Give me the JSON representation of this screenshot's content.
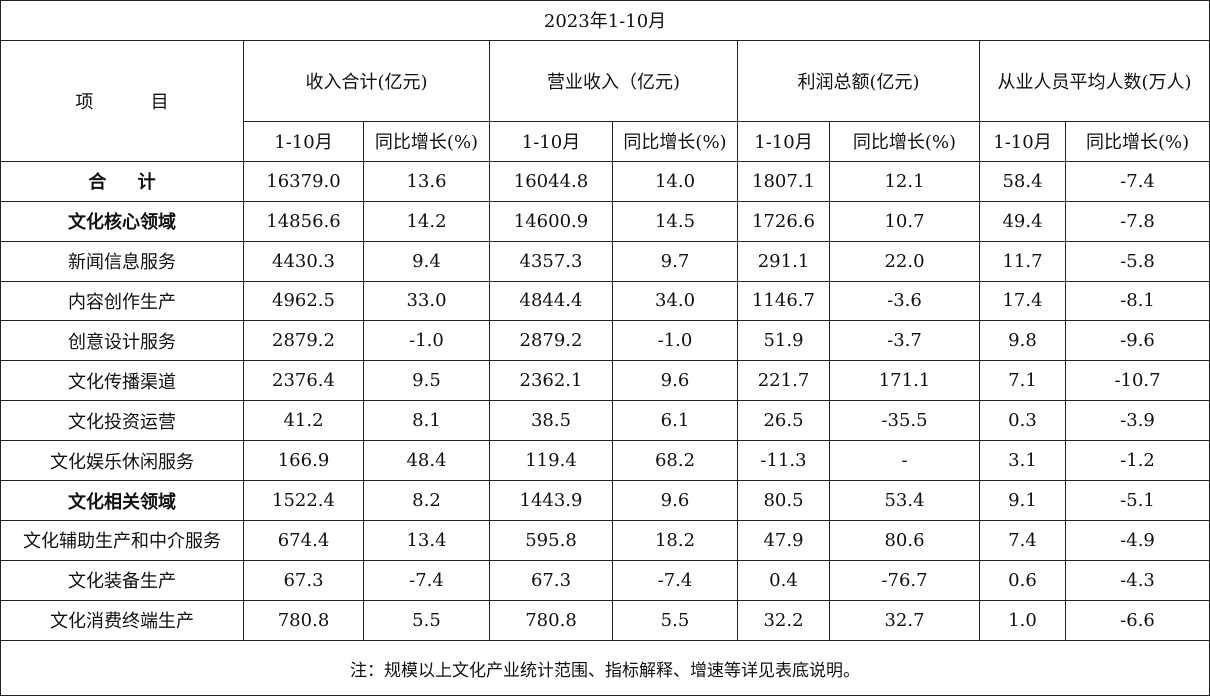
{
  "title": "2023年1-10月",
  "header": {
    "item_label": "项          目",
    "groups": [
      "收入合计(亿元)",
      "营业收入（亿元)",
      "利润总额(亿元)",
      "从业人员平均人数(万人)"
    ],
    "sub": [
      "1-10月",
      "同比增长(%)",
      "1-10月",
      "同比增长(%)",
      "1-10月",
      "同比增长(%)",
      "1-10月",
      "同比增长(%)"
    ]
  },
  "rows": [
    {
      "name": "合     计",
      "bold": true,
      "values": [
        "16379.0",
        "13.6",
        "16044.8",
        "14.0",
        "1807.1",
        "12.1",
        "58.4",
        "-7.4"
      ]
    },
    {
      "name": "文化核心领域",
      "bold": true,
      "values": [
        "14856.6",
        "14.2",
        "14600.9",
        "14.5",
        "1726.6",
        "10.7",
        "49.4",
        "-7.8"
      ]
    },
    {
      "name": "新闻信息服务",
      "bold": false,
      "values": [
        "4430.3",
        "9.4",
        "4357.3",
        "9.7",
        "291.1",
        "22.0",
        "11.7",
        "-5.8"
      ]
    },
    {
      "name": "内容创作生产",
      "bold": false,
      "values": [
        "4962.5",
        "33.0",
        "4844.4",
        "34.0",
        "1146.7",
        "-3.6",
        "17.4",
        "-8.1"
      ]
    },
    {
      "name": "创意设计服务",
      "bold": false,
      "values": [
        "2879.2",
        "-1.0",
        "2879.2",
        "-1.0",
        "51.9",
        "-3.7",
        "9.8",
        "-9.6"
      ]
    },
    {
      "name": "文化传播渠道",
      "bold": false,
      "values": [
        "2376.4",
        "9.5",
        "2362.1",
        "9.6",
        "221.7",
        "171.1",
        "7.1",
        "-10.7"
      ]
    },
    {
      "name": "文化投资运营",
      "bold": false,
      "values": [
        "41.2",
        "8.1",
        "38.5",
        "6.1",
        "26.5",
        "-35.5",
        "0.3",
        "-3.9"
      ]
    },
    {
      "name": "文化娱乐休闲服务",
      "bold": false,
      "values": [
        "166.9",
        "48.4",
        "119.4",
        "68.2",
        "-11.3",
        "-",
        "3.1",
        "-1.2"
      ]
    },
    {
      "name": "文化相关领域",
      "bold": true,
      "values": [
        "1522.4",
        "8.2",
        "1443.9",
        "9.6",
        "80.5",
        "53.4",
        "9.1",
        "-5.1"
      ]
    },
    {
      "name": "文化辅助生产和中介服务",
      "bold": false,
      "values": [
        "674.4",
        "13.4",
        "595.8",
        "18.2",
        "47.9",
        "80.6",
        "7.4",
        "-4.9"
      ]
    },
    {
      "name": "文化装备生产",
      "bold": false,
      "values": [
        "67.3",
        "-7.4",
        "67.3",
        "-7.4",
        "0.4",
        "-76.7",
        "0.6",
        "-4.3"
      ]
    },
    {
      "name": "文化消费终端生产",
      "bold": false,
      "values": [
        "780.8",
        "5.5",
        "780.8",
        "5.5",
        "32.2",
        "32.7",
        "1.0",
        "-6.6"
      ]
    }
  ],
  "note": "注：规模以上文化产业统计范围、指标解释、增速等详见表底说明。"
}
